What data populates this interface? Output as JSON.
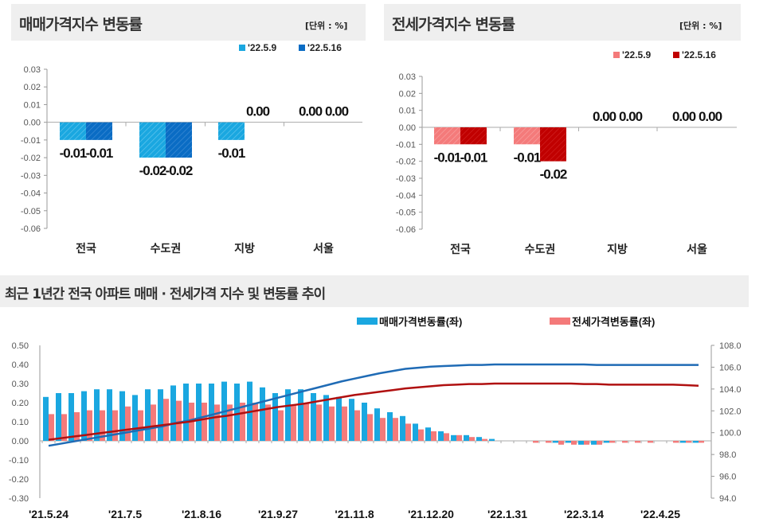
{
  "chart_data": [
    {
      "type": "bar",
      "title": "매매가격지수 변동률",
      "unit_label": "[단위 : %]",
      "categories": [
        "전국",
        "수도권",
        "지방",
        "서울"
      ],
      "series": [
        {
          "name": "'22.5.9",
          "color": "#1aa7e0",
          "values": [
            -0.01,
            -0.02,
            -0.01,
            0.0
          ]
        },
        {
          "name": "'22.5.16",
          "color": "#0a6cc4",
          "values": [
            -0.01,
            -0.02,
            0.0,
            0.0
          ]
        }
      ],
      "data_labels": [
        [
          "-0.01",
          "-0.02",
          "-0.01",
          "0.00"
        ],
        [
          "-0.01",
          "-0.02",
          "0.00",
          "0.00"
        ]
      ],
      "yticks": [
        "0.03",
        "0.02",
        "0.01",
        "0.00",
        "-0.01",
        "-0.02",
        "-0.03",
        "-0.04",
        "-0.05",
        "-0.06"
      ],
      "ylim": [
        -0.06,
        0.03
      ],
      "legend": "top-right"
    },
    {
      "type": "bar",
      "title": "전세가격지수 변동률",
      "unit_label": "[단위 : %]",
      "categories": [
        "전국",
        "수도권",
        "지방",
        "서울"
      ],
      "series": [
        {
          "name": "'22.5.9",
          "color": "#f47a7a",
          "values": [
            -0.01,
            -0.01,
            0.0,
            0.0
          ]
        },
        {
          "name": "'22.5.16",
          "color": "#c00000",
          "values": [
            -0.01,
            -0.02,
            0.0,
            0.0
          ]
        }
      ],
      "data_labels": [
        [
          "-0.01",
          "-0.01",
          "0.00",
          "0.00"
        ],
        [
          "-0.01",
          "-0.02",
          "0.00",
          "0.00"
        ]
      ],
      "yticks": [
        "0.03",
        "0.02",
        "0.01",
        "0.00",
        "-0.01",
        "-0.02",
        "-0.03",
        "-0.04",
        "-0.05",
        "-0.06"
      ],
      "ylim": [
        -0.06,
        0.03
      ],
      "legend": "top-right"
    },
    {
      "type": "bar+line",
      "title": "최근 1년간 전국 아파트 매매 · 전세가격 지수 및 변동률 추이",
      "xticks": [
        "'21.5.24",
        "'21.7.5",
        "'21.8.16",
        "'21.9.27",
        "'21.11.8",
        "'21.12.20",
        "'22.1.31",
        "'22.3.14",
        "'22.4.25"
      ],
      "yticks_left": [
        "0.50",
        "0.40",
        "0.30",
        "0.20",
        "0.10",
        "0.00",
        "-0.10",
        "-0.20",
        "-0.30"
      ],
      "yticks_right": [
        "108.0",
        "106.0",
        "104.0",
        "102.0",
        "100.0",
        "98.0",
        "96.0",
        "94.0"
      ],
      "ylim_left": [
        -0.3,
        0.5
      ],
      "ylim_right": [
        94.0,
        108.0
      ],
      "legend": "top",
      "series": [
        {
          "name": "매매가격변동률(좌)",
          "color": "#1aa7e0",
          "values": [
            0.23,
            0.25,
            0.25,
            0.26,
            0.27,
            0.27,
            0.26,
            0.24,
            0.27,
            0.27,
            0.29,
            0.3,
            0.3,
            0.3,
            0.31,
            0.3,
            0.31,
            0.28,
            0.25,
            0.27,
            0.27,
            0.25,
            0.24,
            0.23,
            0.22,
            0.2,
            0.17,
            0.15,
            0.13,
            0.09,
            0.07,
            0.05,
            0.03,
            0.03,
            0.02,
            0.01,
            0.0,
            0.0,
            0.0,
            0.0,
            -0.01,
            -0.01,
            -0.02,
            -0.02,
            -0.01,
            0.0,
            0.0,
            0.0,
            0.0,
            0.0,
            -0.01,
            -0.01
          ]
        },
        {
          "name": "전세가격변동률(좌)",
          "color": "#f47a7a",
          "values": [
            0.14,
            0.14,
            0.15,
            0.16,
            0.16,
            0.16,
            0.18,
            0.16,
            0.19,
            0.22,
            0.21,
            0.2,
            0.2,
            0.19,
            0.19,
            0.2,
            0.2,
            0.19,
            0.16,
            0.19,
            0.2,
            0.19,
            0.18,
            0.18,
            0.16,
            0.14,
            0.12,
            0.12,
            0.09,
            0.06,
            0.05,
            0.04,
            0.03,
            0.02,
            0.01,
            0.0,
            0.0,
            0.0,
            -0.01,
            -0.01,
            -0.02,
            -0.02,
            -0.02,
            -0.02,
            -0.01,
            -0.01,
            -0.01,
            -0.01,
            0.0,
            -0.01,
            -0.01,
            -0.01
          ]
        },
        {
          "axis": "right",
          "color": "#1f6bb5",
          "values": [
            98.8,
            99.0,
            99.2,
            99.4,
            99.6,
            99.8,
            100.0,
            100.2,
            100.4,
            100.6,
            100.9,
            101.1,
            101.4,
            101.7,
            102.0,
            102.3,
            102.6,
            102.9,
            103.2,
            103.5,
            103.8,
            104.1,
            104.4,
            104.7,
            104.95,
            105.2,
            105.45,
            105.65,
            105.85,
            105.95,
            106.05,
            106.1,
            106.15,
            106.2,
            106.2,
            106.25,
            106.25,
            106.25,
            106.25,
            106.25,
            106.25,
            106.25,
            106.25,
            106.2,
            106.2,
            106.2,
            106.2,
            106.2,
            106.2,
            106.2,
            106.2,
            106.2
          ]
        },
        {
          "axis": "right",
          "color": "#b01010",
          "values": [
            99.35,
            99.5,
            99.65,
            99.8,
            99.95,
            100.1,
            100.25,
            100.4,
            100.55,
            100.7,
            100.85,
            101.0,
            101.2,
            101.4,
            101.55,
            101.75,
            101.95,
            102.15,
            102.35,
            102.5,
            102.65,
            102.85,
            103.05,
            103.25,
            103.45,
            103.6,
            103.75,
            103.9,
            104.05,
            104.15,
            104.25,
            104.35,
            104.4,
            104.45,
            104.45,
            104.5,
            104.5,
            104.5,
            104.5,
            104.5,
            104.5,
            104.5,
            104.45,
            104.45,
            104.4,
            104.4,
            104.4,
            104.4,
            104.4,
            104.4,
            104.35,
            104.3
          ]
        }
      ]
    }
  ]
}
